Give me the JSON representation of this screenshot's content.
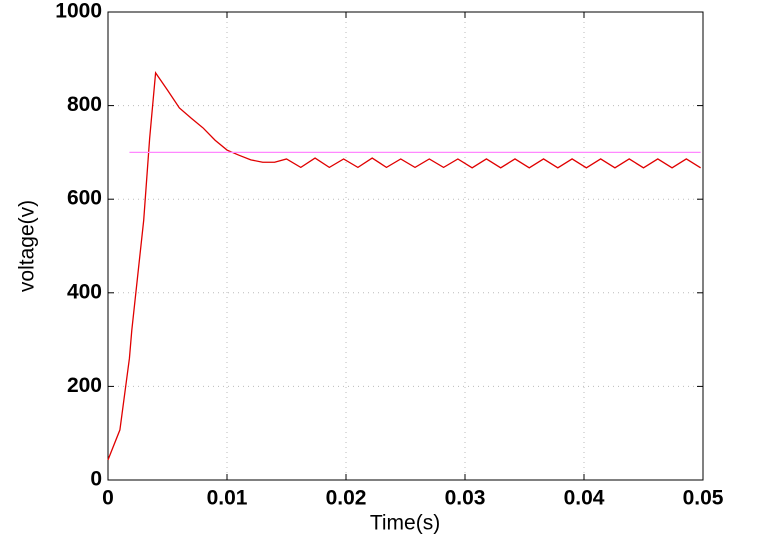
{
  "chart_data": {
    "type": "line",
    "xlabel": "Time(s)",
    "ylabel": "voltage(v)",
    "x": [
      0,
      0.001,
      0.0018,
      0.002,
      0.003,
      0.0035,
      0.004,
      0.005,
      0.006,
      0.007,
      0.008,
      0.009,
      0.01,
      0.011,
      0.012,
      0.013,
      0.014,
      0.015,
      0.0162,
      0.0174,
      0.0186,
      0.0198,
      0.021,
      0.0222,
      0.0234,
      0.0246,
      0.0258,
      0.027,
      0.0282,
      0.0294,
      0.0306,
      0.0318,
      0.033,
      0.0342,
      0.0354,
      0.0366,
      0.0378,
      0.039,
      0.0402,
      0.0414,
      0.0426,
      0.0438,
      0.045,
      0.0462,
      0.0474,
      0.0486,
      0.0498
    ],
    "series": [
      {
        "color": "#e00000",
        "values": [
          43,
          107,
          260,
          320,
          555,
          730,
          870,
          833,
          795,
          773,
          752,
          726,
          705,
          694,
          684,
          679,
          679,
          686,
          668,
          688,
          668,
          686,
          668,
          688,
          668,
          686,
          668,
          686,
          668,
          686,
          667,
          686,
          667,
          686,
          667,
          686,
          667,
          686,
          667,
          686,
          667,
          686,
          667,
          686,
          667,
          686,
          667
        ]
      },
      {
        "color": "#ff88ff",
        "values": [
          null,
          null,
          700,
          700,
          700,
          700,
          700,
          700,
          700,
          700,
          700,
          700,
          700,
          700,
          700,
          700,
          700,
          700,
          700,
          700,
          700,
          700,
          700,
          700,
          700,
          700,
          700,
          700,
          700,
          700,
          700,
          700,
          700,
          700,
          700,
          700,
          700,
          700,
          700,
          700,
          700,
          700,
          700,
          700,
          700,
          700,
          700
        ]
      }
    ],
    "xlim": [
      0,
      0.05
    ],
    "xticks": [
      0,
      0.01,
      0.02,
      0.03,
      0.04,
      0.05
    ],
    "ylim": [
      0,
      1000
    ],
    "yticks": [
      0,
      200,
      400,
      600,
      800,
      1000
    ],
    "grid": true
  }
}
